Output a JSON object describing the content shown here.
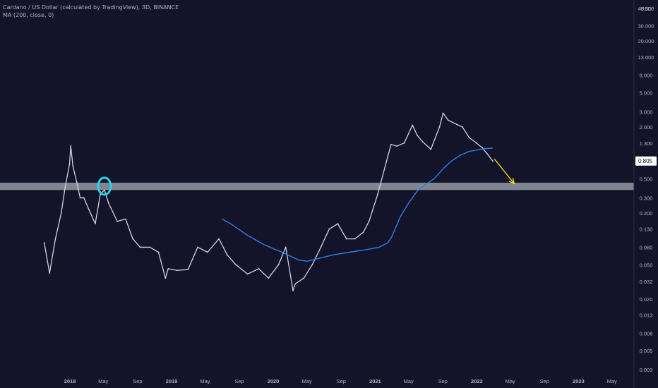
{
  "header": {
    "symbol_line": "Cardano / US Dollar (calculated by TradingView), 3D, BINANCE",
    "indicator_line": "MA (200, close, 0)"
  },
  "colors": {
    "background": "#131429",
    "candles": "#d1d4dc",
    "ma": "#2a7fe6",
    "zone": "#b2b5be",
    "circle": "#24d3e6",
    "arrow": "#f2e41d",
    "axis_text": "#b2b5be",
    "current_price_bg": "#ffffff"
  },
  "chart_data": {
    "type": "line",
    "y_scale": "log",
    "currency_label": "USD",
    "y_ticks": [
      "48.000",
      "30.000",
      "20.000",
      "13.000",
      "8.000",
      "5.000",
      "3.000",
      "2.000",
      "1.300",
      "0.805",
      "0.500",
      "0.300",
      "0.200",
      "0.130",
      "0.080",
      "0.050",
      "0.032",
      "0.020",
      "0.013",
      "0.008",
      "0.005",
      "0.003"
    ],
    "x_ticks": [
      "2018",
      "May",
      "Sep",
      "2019",
      "May",
      "Sep",
      "2020",
      "May",
      "Sep",
      "2021",
      "May",
      "Sep",
      "2022",
      "May",
      "Sep",
      "2023",
      "May"
    ],
    "current_price": "0.805",
    "series": [
      {
        "name": "Price (3D close)",
        "points": [
          [
            "2017-10-01",
            0.09
          ],
          [
            "2017-10-20",
            0.04
          ],
          [
            "2017-11-10",
            0.1
          ],
          [
            "2017-12-01",
            0.2
          ],
          [
            "2017-12-15",
            0.4
          ],
          [
            "2017-12-31",
            0.75
          ],
          [
            "2018-01-04",
            1.2
          ],
          [
            "2018-01-12",
            0.7
          ],
          [
            "2018-01-26",
            0.45
          ],
          [
            "2018-02-07",
            0.3
          ],
          [
            "2018-02-20",
            0.3
          ],
          [
            "2018-03-10",
            0.22
          ],
          [
            "2018-04-02",
            0.15
          ],
          [
            "2018-04-20",
            0.33
          ],
          [
            "2018-05-05",
            0.37
          ],
          [
            "2018-05-20",
            0.26
          ],
          [
            "2018-06-20",
            0.16
          ],
          [
            "2018-07-20",
            0.17
          ],
          [
            "2018-08-15",
            0.1
          ],
          [
            "2018-09-10",
            0.08
          ],
          [
            "2018-10-15",
            0.08
          ],
          [
            "2018-11-15",
            0.07
          ],
          [
            "2018-12-10",
            0.035
          ],
          [
            "2018-12-20",
            0.045
          ],
          [
            "2019-01-20",
            0.043
          ],
          [
            "2019-03-01",
            0.044
          ],
          [
            "2019-04-05",
            0.08
          ],
          [
            "2019-05-10",
            0.07
          ],
          [
            "2019-06-20",
            0.1
          ],
          [
            "2019-07-20",
            0.065
          ],
          [
            "2019-08-20",
            0.05
          ],
          [
            "2019-10-01",
            0.039
          ],
          [
            "2019-11-10",
            0.045
          ],
          [
            "2019-12-15",
            0.035
          ],
          [
            "2020-01-20",
            0.05
          ],
          [
            "2020-02-15",
            0.08
          ],
          [
            "2020-03-12",
            0.025
          ],
          [
            "2020-03-20",
            0.03
          ],
          [
            "2020-04-20",
            0.035
          ],
          [
            "2020-05-20",
            0.05
          ],
          [
            "2020-06-20",
            0.08
          ],
          [
            "2020-07-20",
            0.13
          ],
          [
            "2020-08-20",
            0.15
          ],
          [
            "2020-09-20",
            0.1
          ],
          [
            "2020-10-20",
            0.1
          ],
          [
            "2020-11-20",
            0.12
          ],
          [
            "2020-12-10",
            0.16
          ],
          [
            "2021-01-10",
            0.33
          ],
          [
            "2021-02-15",
            0.9
          ],
          [
            "2021-02-27",
            1.25
          ],
          [
            "2021-03-20",
            1.2
          ],
          [
            "2021-04-15",
            1.3
          ],
          [
            "2021-05-15",
            2.1
          ],
          [
            "2021-06-01",
            1.6
          ],
          [
            "2021-06-20",
            1.35
          ],
          [
            "2021-07-20",
            1.1
          ],
          [
            "2021-08-20",
            2.0
          ],
          [
            "2021-09-02",
            2.9
          ],
          [
            "2021-09-20",
            2.4
          ],
          [
            "2021-10-20",
            2.15
          ],
          [
            "2021-11-10",
            2.0
          ],
          [
            "2021-12-05",
            1.5
          ],
          [
            "2021-12-31",
            1.3
          ],
          [
            "2022-01-20",
            1.15
          ],
          [
            "2022-02-10",
            0.95
          ],
          [
            "2022-02-27",
            0.805
          ]
        ]
      },
      {
        "name": "MA (200, close, 0)",
        "points": [
          [
            "2019-07-01",
            0.17
          ],
          [
            "2019-08-01",
            0.15
          ],
          [
            "2019-10-01",
            0.11
          ],
          [
            "2019-12-01",
            0.085
          ],
          [
            "2020-02-01",
            0.07
          ],
          [
            "2020-04-01",
            0.057
          ],
          [
            "2020-05-01",
            0.055
          ],
          [
            "2020-06-01",
            0.058
          ],
          [
            "2020-08-01",
            0.065
          ],
          [
            "2020-10-01",
            0.07
          ],
          [
            "2020-12-01",
            0.075
          ],
          [
            "2021-01-15",
            0.08
          ],
          [
            "2021-02-15",
            0.09
          ],
          [
            "2021-03-01",
            0.105
          ],
          [
            "2021-04-01",
            0.18
          ],
          [
            "2021-05-01",
            0.26
          ],
          [
            "2021-06-01",
            0.36
          ],
          [
            "2021-07-01",
            0.43
          ],
          [
            "2021-08-01",
            0.5
          ],
          [
            "2021-09-01",
            0.65
          ],
          [
            "2021-10-01",
            0.8
          ],
          [
            "2021-11-01",
            0.93
          ],
          [
            "2021-12-01",
            1.03
          ],
          [
            "2022-01-01",
            1.08
          ],
          [
            "2022-02-01",
            1.12
          ],
          [
            "2022-02-27",
            1.14
          ]
        ]
      }
    ],
    "annotations": {
      "support_zone": {
        "low": 0.37,
        "high": 0.45
      },
      "circle_marker": {
        "x": "2018-05-05",
        "y": 0.41
      },
      "arrow": {
        "from": [
          "2022-03-05",
          0.85
        ],
        "to": [
          "2022-05-15",
          0.44
        ]
      }
    }
  }
}
